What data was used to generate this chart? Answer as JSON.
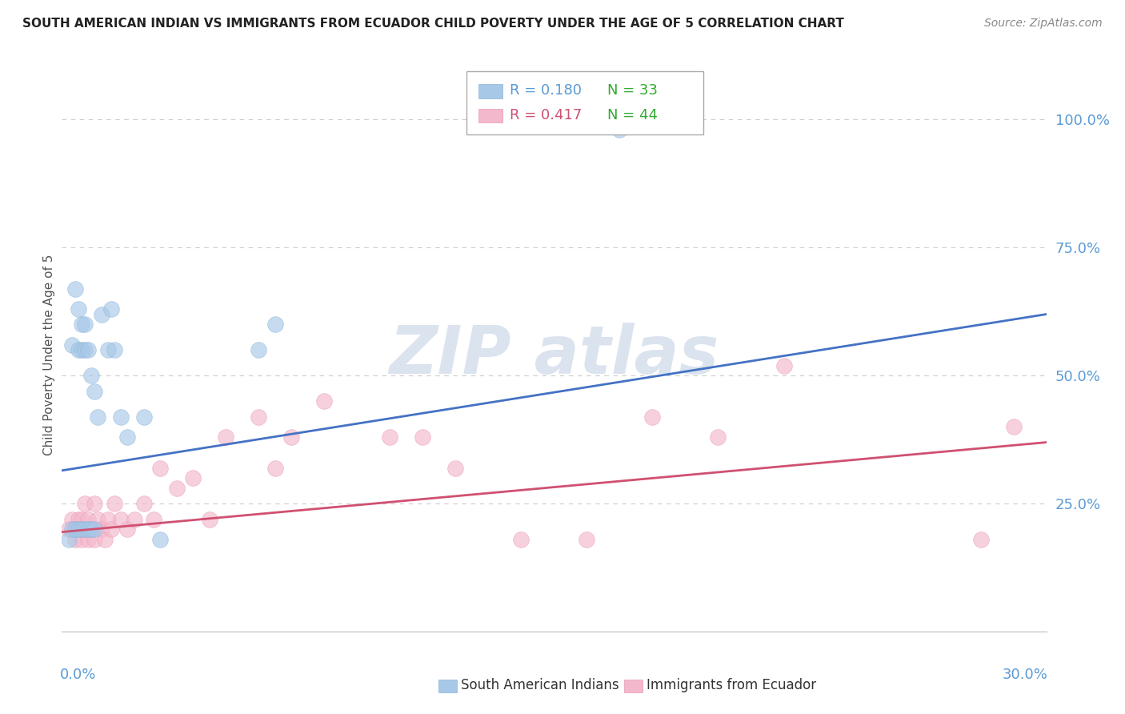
{
  "title": "SOUTH AMERICAN INDIAN VS IMMIGRANTS FROM ECUADOR CHILD POVERTY UNDER THE AGE OF 5 CORRELATION CHART",
  "source": "Source: ZipAtlas.com",
  "ylabel_label": "Child Poverty Under the Age of 5",
  "legend_blue_r": "R = 0.180",
  "legend_blue_n": "N = 33",
  "legend_pink_r": "R = 0.417",
  "legend_pink_n": "N = 44",
  "legend_label_blue": "South American Indians",
  "legend_label_pink": "Immigrants from Ecuador",
  "ytick_labels": [
    "100.0%",
    "75.0%",
    "50.0%",
    "25.0%"
  ],
  "ytick_positions": [
    1.0,
    0.75,
    0.5,
    0.25
  ],
  "xlim": [
    0.0,
    0.3
  ],
  "ylim": [
    0.0,
    1.08
  ],
  "color_blue": "#a8c8e8",
  "color_blue_edge": "#8ab4d8",
  "color_pink": "#f4b8cc",
  "color_pink_edge": "#e898b4",
  "color_line_blue": "#4472c4",
  "color_line_pink": "#d05070",
  "color_axis_text": "#5b9bd5",
  "color_grid": "#cccccc",
  "watermark_color": "#ccd8e8",
  "blue_scatter_x": [
    0.002,
    0.003,
    0.003,
    0.004,
    0.004,
    0.005,
    0.005,
    0.005,
    0.006,
    0.006,
    0.006,
    0.007,
    0.007,
    0.007,
    0.008,
    0.008,
    0.009,
    0.009,
    0.01,
    0.01,
    0.011,
    0.012,
    0.014,
    0.015,
    0.016,
    0.018,
    0.02,
    0.025,
    0.03,
    0.06,
    0.065,
    0.13,
    0.17
  ],
  "blue_scatter_y": [
    0.18,
    0.2,
    0.56,
    0.67,
    0.2,
    0.55,
    0.63,
    0.2,
    0.55,
    0.6,
    0.2,
    0.55,
    0.6,
    0.2,
    0.55,
    0.2,
    0.5,
    0.2,
    0.47,
    0.2,
    0.42,
    0.62,
    0.55,
    0.63,
    0.55,
    0.42,
    0.38,
    0.42,
    0.18,
    0.55,
    0.6,
    0.99,
    0.98
  ],
  "pink_scatter_x": [
    0.002,
    0.003,
    0.004,
    0.005,
    0.005,
    0.006,
    0.006,
    0.007,
    0.007,
    0.008,
    0.008,
    0.009,
    0.01,
    0.01,
    0.011,
    0.012,
    0.013,
    0.014,
    0.015,
    0.016,
    0.018,
    0.02,
    0.022,
    0.025,
    0.028,
    0.03,
    0.035,
    0.04,
    0.045,
    0.05,
    0.06,
    0.065,
    0.07,
    0.08,
    0.1,
    0.11,
    0.12,
    0.14,
    0.16,
    0.18,
    0.2,
    0.22,
    0.28,
    0.29
  ],
  "pink_scatter_y": [
    0.2,
    0.22,
    0.18,
    0.2,
    0.22,
    0.18,
    0.22,
    0.2,
    0.25,
    0.18,
    0.22,
    0.2,
    0.18,
    0.25,
    0.22,
    0.2,
    0.18,
    0.22,
    0.2,
    0.25,
    0.22,
    0.2,
    0.22,
    0.25,
    0.22,
    0.32,
    0.28,
    0.3,
    0.22,
    0.38,
    0.42,
    0.32,
    0.38,
    0.45,
    0.38,
    0.38,
    0.32,
    0.18,
    0.18,
    0.42,
    0.38,
    0.52,
    0.18,
    0.4
  ],
  "blue_line_x0": 0.0,
  "blue_line_x1": 0.3,
  "blue_line_y0": 0.315,
  "blue_line_y1": 0.62,
  "pink_line_x0": 0.0,
  "pink_line_x1": 0.3,
  "pink_line_y0": 0.195,
  "pink_line_y1": 0.37
}
